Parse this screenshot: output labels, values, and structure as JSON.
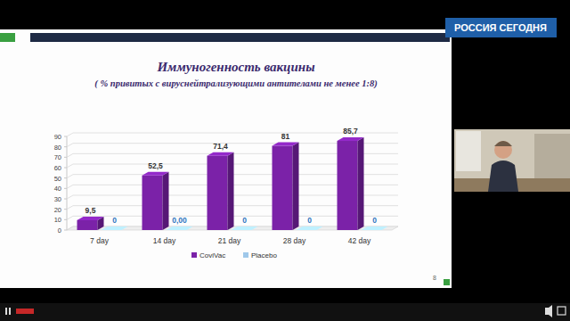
{
  "screen": {
    "channel": "РОССИЯ СЕГОДНЯ",
    "slide_number": "8"
  },
  "chart_data": {
    "type": "bar",
    "title": "Иммуногенность вакцины",
    "subtitle": "( % привитых с вируснейтрализующими антителами не менее 1:8)",
    "categories": [
      "7 day",
      "14 day",
      "21 day",
      "28 day",
      "42 day"
    ],
    "series": [
      {
        "name": "CoviVac",
        "color": "#7b22a8",
        "values": [
          9.5,
          52.5,
          71.4,
          81,
          85.7
        ],
        "value_labels": [
          "9,5",
          "52,5",
          "71,4",
          "81",
          "85,7"
        ]
      },
      {
        "name": "Placebo",
        "color": "#9fc8ea",
        "values": [
          0,
          0,
          0,
          0,
          0
        ],
        "value_labels": [
          "0",
          "0,00",
          "0",
          "0",
          "0"
        ]
      }
    ],
    "ylim": [
      0,
      90
    ],
    "yticks": [
      0,
      10,
      20,
      30,
      40,
      50,
      60,
      70,
      80,
      90
    ],
    "grid": true,
    "legend": "bottom",
    "data_labels": true
  }
}
